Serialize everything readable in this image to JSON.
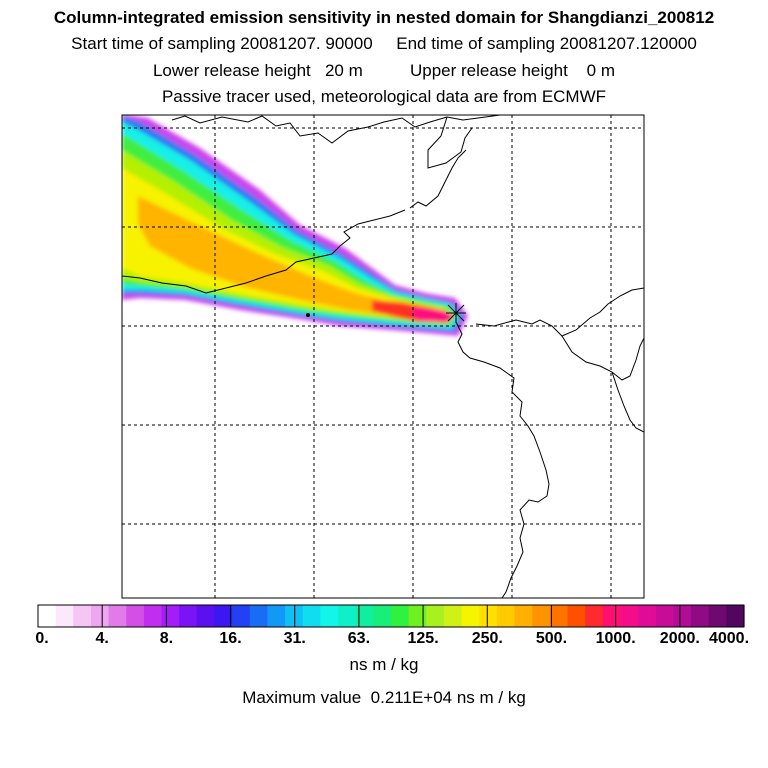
{
  "header": {
    "title": "Column-integrated emission sensitivity in nested domain for Shangdianzi_200812",
    "sampling_line": "Start time of sampling 20081207. 90000     End time of sampling 20081207.120000",
    "release_line": "Lower release height   20 m          Upper release height    0 m",
    "tracer_line": "Passive tracer used, meteorological data are from ECMWF"
  },
  "colorbar": {
    "tick_labels": [
      "0.",
      "4.",
      "8.",
      "16.",
      "31.",
      "63.",
      "125.",
      "250.",
      "500.",
      "1000.",
      "2000.",
      "4000."
    ],
    "colors": [
      "#ffffff",
      "#fbe8fb",
      "#f5c6f5",
      "#eea6f0",
      "#e27be8",
      "#d44fe6",
      "#c22ef0",
      "#a51cfa",
      "#7a14f5",
      "#5a10f0",
      "#3b18f2",
      "#2440f5",
      "#1a6cf5",
      "#1298f5",
      "#0fc0f5",
      "#10ddf0",
      "#12f5e8",
      "#10f0c8",
      "#10eea0",
      "#18ee78",
      "#30f040",
      "#70f020",
      "#a8f020",
      "#d0f018",
      "#f5f500",
      "#ffe000",
      "#ffca00",
      "#ffb000",
      "#ff9400",
      "#ff7400",
      "#ff5000",
      "#ff2a30",
      "#ff1070",
      "#f40c88",
      "#e00c98",
      "#c80c98",
      "#b00c94",
      "#900a84",
      "#700872",
      "#520660"
    ],
    "unit": "ns m / kg",
    "max_label": "Maximum value  0.211E+04 ns m / kg"
  },
  "map": {
    "receptor_marker": "receptor-star-icon",
    "plume_colors": {
      "violet": "#cc44ee",
      "blue": "#2a7af2",
      "cyan": "#18f0e8",
      "green": "#40ee40",
      "lime": "#b4f000",
      "yellow": "#f7f200",
      "orange": "#ffb400",
      "red": "#ff3020",
      "magenta": "#ff1080"
    }
  }
}
